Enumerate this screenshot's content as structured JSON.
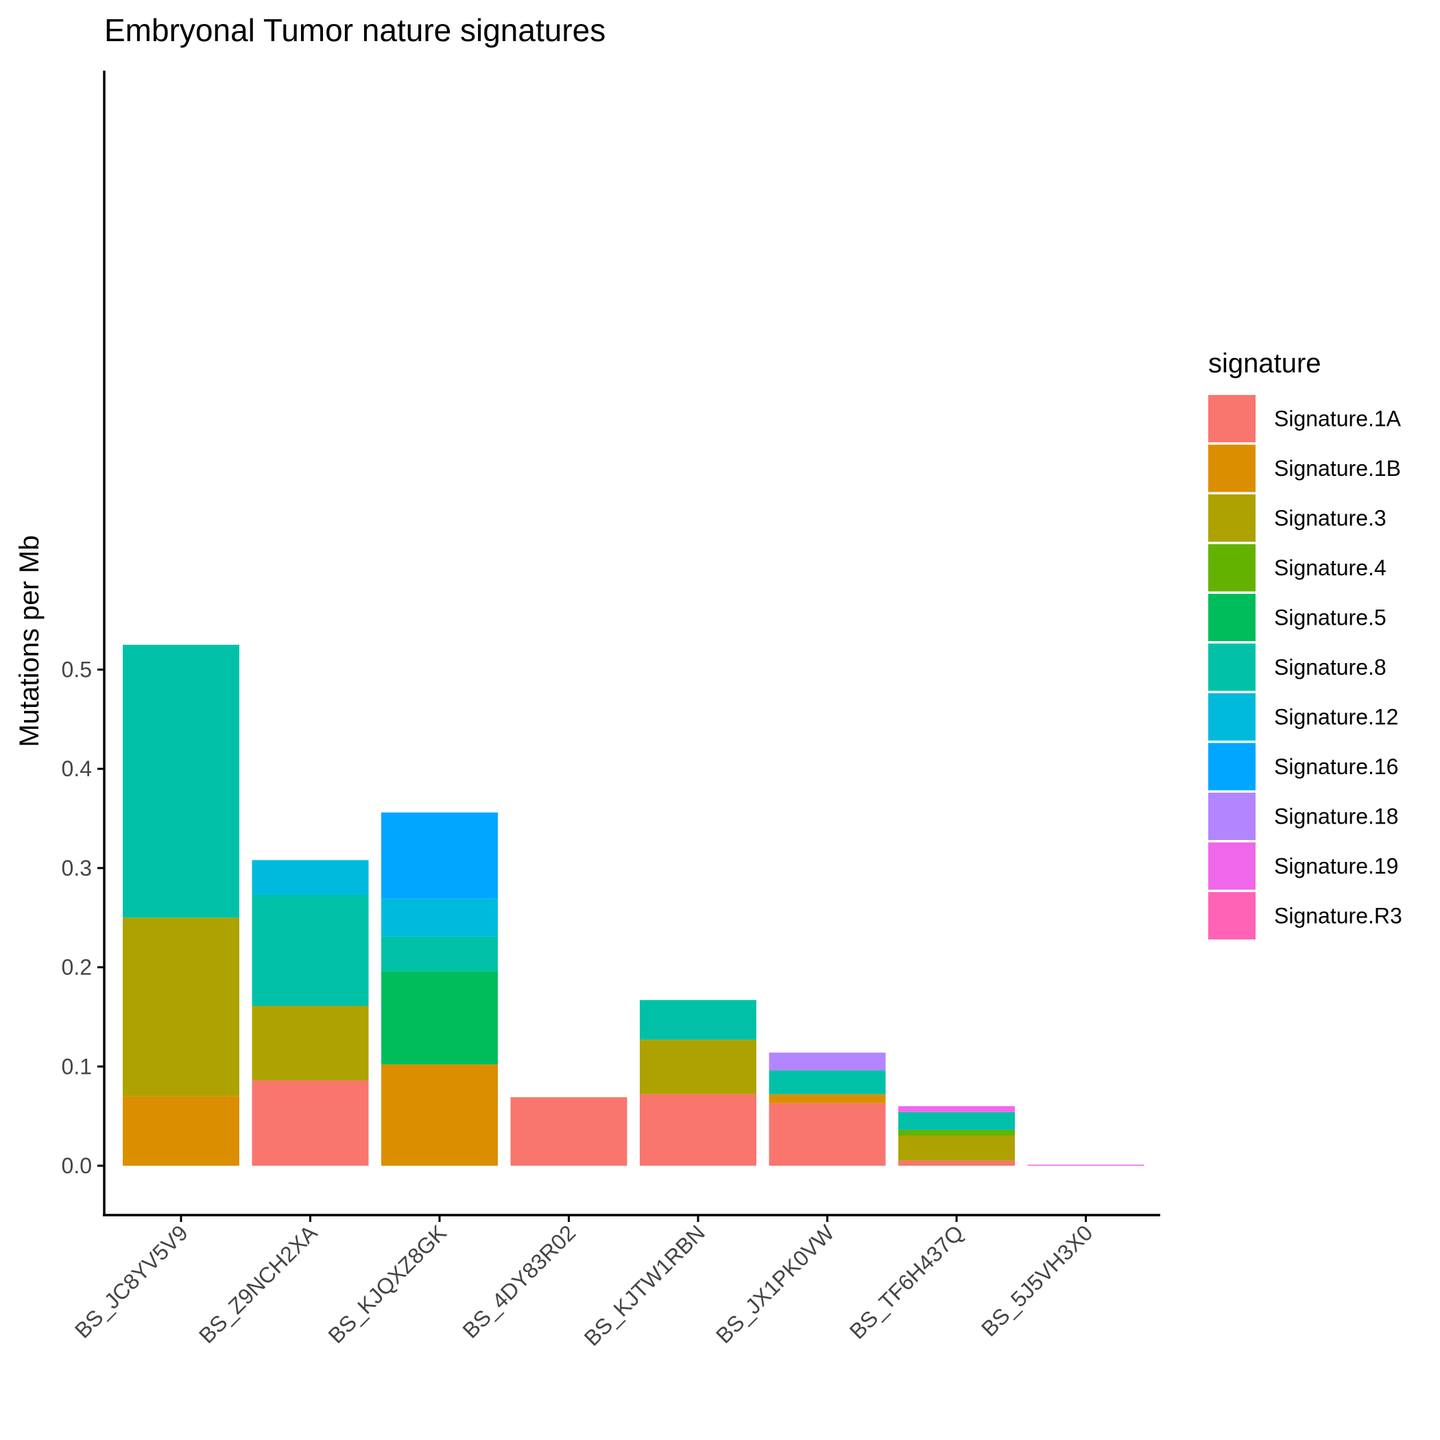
{
  "chart_data": {
    "type": "bar",
    "stacked": true,
    "title": "Embryonal Tumor nature signatures",
    "xlabel": "",
    "ylabel": "Mutations per Mb",
    "ylim": [
      -0.027,
      0.54
    ],
    "yticks": [
      "0.0",
      "0.1",
      "0.2",
      "0.3",
      "0.4",
      "0.5"
    ],
    "categories": [
      "BS_JC8YV5V9",
      "BS_Z9NCH2XA",
      "BS_KJQXZ8GK",
      "BS_4DY83R02",
      "BS_KJTW1RBN",
      "BS_JX1PK0VW",
      "BS_TF6H437Q",
      "BS_5J5VH3X0"
    ],
    "legend_title": "signature",
    "legend_position": "right",
    "grid": false,
    "series": [
      {
        "name": "Signature.1A",
        "color": "#F8766D",
        "values": [
          0,
          0.086,
          0,
          0.069,
          0.072,
          0.063,
          0.005,
          0
        ]
      },
      {
        "name": "Signature.1B",
        "color": "#DB8E00",
        "values": [
          0.07,
          0,
          0.102,
          0,
          0,
          0.009,
          0,
          0
        ]
      },
      {
        "name": "Signature.3",
        "color": "#AEA200",
        "values": [
          0.18,
          0.075,
          0,
          0,
          0.055,
          0,
          0.025,
          0
        ]
      },
      {
        "name": "Signature.4",
        "color": "#64B200",
        "values": [
          0,
          0,
          0,
          0,
          0,
          0,
          0.006,
          0
        ]
      },
      {
        "name": "Signature.5",
        "color": "#00BD5C",
        "values": [
          0,
          0,
          0.094,
          0,
          0,
          0,
          0,
          0
        ]
      },
      {
        "name": "Signature.8",
        "color": "#00C1A7",
        "values": [
          0.275,
          0.112,
          0.035,
          0,
          0.04,
          0.024,
          0.018,
          0
        ]
      },
      {
        "name": "Signature.12",
        "color": "#00BADE",
        "values": [
          0,
          0.035,
          0.038,
          0,
          0,
          0,
          0,
          0
        ]
      },
      {
        "name": "Signature.16",
        "color": "#00A6FF",
        "values": [
          0,
          0,
          0.087,
          0,
          0,
          0,
          0,
          0
        ]
      },
      {
        "name": "Signature.18",
        "color": "#B385FF",
        "values": [
          0,
          0,
          0,
          0,
          0,
          0.018,
          0,
          0
        ]
      },
      {
        "name": "Signature.19",
        "color": "#EF67EB",
        "values": [
          0,
          0,
          0,
          0,
          0,
          0,
          0.006,
          0.0005
        ]
      },
      {
        "name": "Signature.R3",
        "color": "#FF63B6",
        "values": [
          0,
          0,
          0,
          0,
          0,
          0,
          0,
          0
        ]
      }
    ]
  }
}
